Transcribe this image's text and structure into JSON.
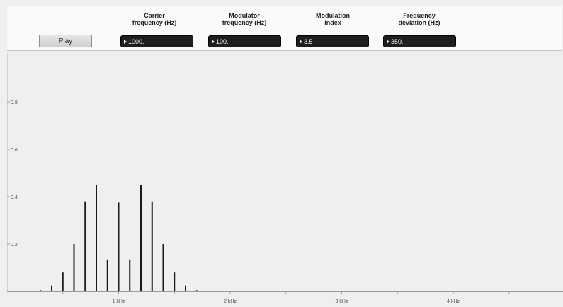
{
  "controls": {
    "play_label": "Play",
    "params": [
      {
        "label": "Carrier\nfrequency (Hz)",
        "value": "1000."
      },
      {
        "label": "Modulator\nfrequency (Hz)",
        "value": "100."
      },
      {
        "label": "Modulation\nindex",
        "value": "3.5"
      },
      {
        "label": "Frequency\ndeviation (Hz)",
        "value": "350."
      }
    ]
  },
  "icons": [
    "triangle-right-icon"
  ],
  "chart_data": {
    "type": "bar",
    "title": "",
    "xlabel": "",
    "ylabel": "",
    "xlim": [
      0,
      4800
    ],
    "ylim": [
      0,
      1.0
    ],
    "grid": false,
    "x_ticks": [
      {
        "value": 1000,
        "label": "1 kHz"
      },
      {
        "value": 2000,
        "label": "2 kHz"
      },
      {
        "value": 3000,
        "label": "3 kHz"
      },
      {
        "value": 4000,
        "label": "4 kHz"
      }
    ],
    "y_ticks": [
      {
        "value": 0.2,
        "label": "0.2"
      },
      {
        "value": 0.4,
        "label": "0.4"
      },
      {
        "value": 0.6,
        "label": "0.6"
      },
      {
        "value": 0.8,
        "label": "0.8"
      }
    ],
    "series": [
      {
        "x": [
          300,
          400,
          500,
          600,
          700,
          800,
          900,
          1000,
          1100,
          1200,
          1300,
          1400,
          1500,
          1600,
          1700
        ],
        "values": [
          0.005,
          0.025,
          0.08,
          0.2,
          0.38,
          0.45,
          0.135,
          0.375,
          0.135,
          0.45,
          0.38,
          0.2,
          0.08,
          0.025,
          0.005
        ]
      }
    ]
  }
}
